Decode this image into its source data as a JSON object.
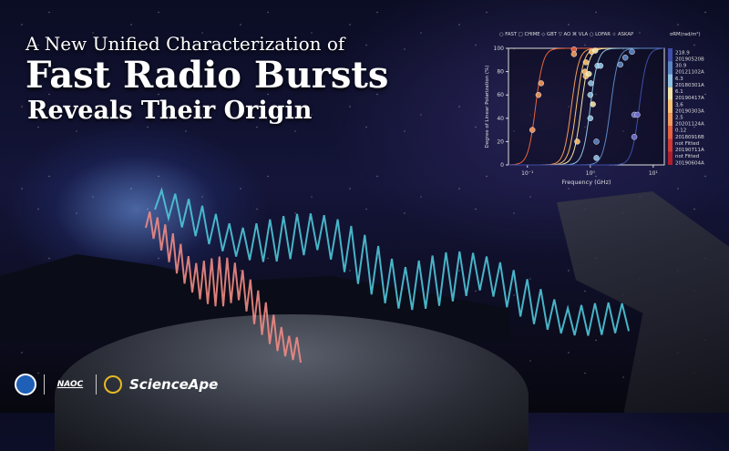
{
  "title": {
    "line1": "A New Unified Characterization of",
    "line2": "Fast Radio Bursts",
    "line3": "Reveals Their Origin"
  },
  "logos": {
    "naoc": "NAOC",
    "scienceape": "ScienceApe",
    "cas": "CAS logo"
  },
  "chart_data": {
    "type": "scatter",
    "xlabel": "Frequency (GHz)",
    "ylabel": "Degree of Linear Polarization (%)",
    "xscale": "log",
    "xlim": [
      0.05,
      15
    ],
    "ylim": [
      0,
      100
    ],
    "xticks": [
      {
        "v": 0.1,
        "label": "10⁻¹"
      },
      {
        "v": 1,
        "label": "10⁰"
      },
      {
        "v": 10,
        "label": "10¹"
      }
    ],
    "yticks": [
      0,
      20,
      40,
      60,
      80,
      100
    ],
    "legend": [
      "○ FAST",
      "□ CHIME",
      "◇ GBT",
      "▽ AO",
      "⌘ VLA",
      "○ LOFAR",
      "☆ ASKAP"
    ],
    "legend_placement": "top",
    "colorbar_label": "σRM(rad/m²)",
    "colorbar": [
      {
        "value": "218.9",
        "frb": "20190520B",
        "color": "#3f4ea8"
      },
      {
        "value": "30.9",
        "frb": "20121102A",
        "color": "#5b86c4"
      },
      {
        "value": "6.3",
        "frb": "20180301A",
        "color": "#8fc4e3"
      },
      {
        "value": "6.1",
        "frb": "20190417A",
        "color": "#f3e7a8"
      },
      {
        "value": "3.6",
        "frb": "20190303A",
        "color": "#fbc371"
      },
      {
        "value": "2.5",
        "frb": "20201124A",
        "color": "#f49a5a"
      },
      {
        "value": "0.12",
        "frb": "20180916B",
        "color": "#e8623f"
      },
      {
        "value": "not Fitted",
        "frb": "20190711A",
        "color": "#d23a34"
      },
      {
        "value": "not Fitted",
        "frb": "20190604A",
        "color": "#b11f2d"
      }
    ],
    "fit_curves": [
      {
        "midpoint_ghz": 0.135,
        "color": "#e8623f"
      },
      {
        "midpoint_ghz": 0.5,
        "color": "#f49a5a"
      },
      {
        "midpoint_ghz": 0.6,
        "color": "#fbc371"
      },
      {
        "midpoint_ghz": 0.72,
        "color": "#f3e7a8"
      },
      {
        "midpoint_ghz": 1.0,
        "color": "#8fc4e3"
      },
      {
        "midpoint_ghz": 2.1,
        "color": "#5b86c4"
      },
      {
        "midpoint_ghz": 6.0,
        "color": "#3f4ea8"
      }
    ],
    "points": [
      {
        "x": 0.12,
        "y": 30,
        "color": "#f49a5a"
      },
      {
        "x": 0.15,
        "y": 60,
        "color": "#f49a5a"
      },
      {
        "x": 0.165,
        "y": 70,
        "color": "#f49a5a"
      },
      {
        "x": 0.55,
        "y": 99,
        "color": "#e8623f"
      },
      {
        "x": 0.55,
        "y": 95,
        "color": "#f49a5a"
      },
      {
        "x": 0.62,
        "y": 20,
        "color": "#fbc371"
      },
      {
        "x": 0.82,
        "y": 80,
        "color": "#fbc371"
      },
      {
        "x": 0.85,
        "y": 76,
        "color": "#fbc371"
      },
      {
        "x": 0.85,
        "y": 88,
        "color": "#fbc371"
      },
      {
        "x": 0.95,
        "y": 78,
        "color": "#f3e7a8"
      },
      {
        "x": 1.0,
        "y": 60,
        "color": "#8fc4e3"
      },
      {
        "x": 1.02,
        "y": 70,
        "color": "#8fc4e3"
      },
      {
        "x": 1.0,
        "y": 40,
        "color": "#8fc4e3"
      },
      {
        "x": 1.1,
        "y": 52,
        "color": "#f3e7a8"
      },
      {
        "x": 1.25,
        "y": 20,
        "color": "#5b86c4"
      },
      {
        "x": 1.25,
        "y": 6,
        "color": "#8fc4e3"
      },
      {
        "x": 1.3,
        "y": 85,
        "color": "#8fc4e3"
      },
      {
        "x": 1.45,
        "y": 85,
        "color": "#8fc4e3"
      },
      {
        "x": 1.05,
        "y": 97,
        "color": "#fbc371"
      },
      {
        "x": 1.2,
        "y": 98,
        "color": "#f3e7a8"
      },
      {
        "x": 3.0,
        "y": 86,
        "color": "#5b86c4"
      },
      {
        "x": 3.6,
        "y": 92,
        "color": "#5b86c4"
      },
      {
        "x": 4.6,
        "y": 97,
        "color": "#5b86c4"
      },
      {
        "x": 5.0,
        "y": 43,
        "color": "#6f6fd0"
      },
      {
        "x": 5.6,
        "y": 43,
        "color": "#6f6fd0"
      },
      {
        "x": 5.0,
        "y": 24,
        "color": "#6f6fd0"
      }
    ]
  }
}
